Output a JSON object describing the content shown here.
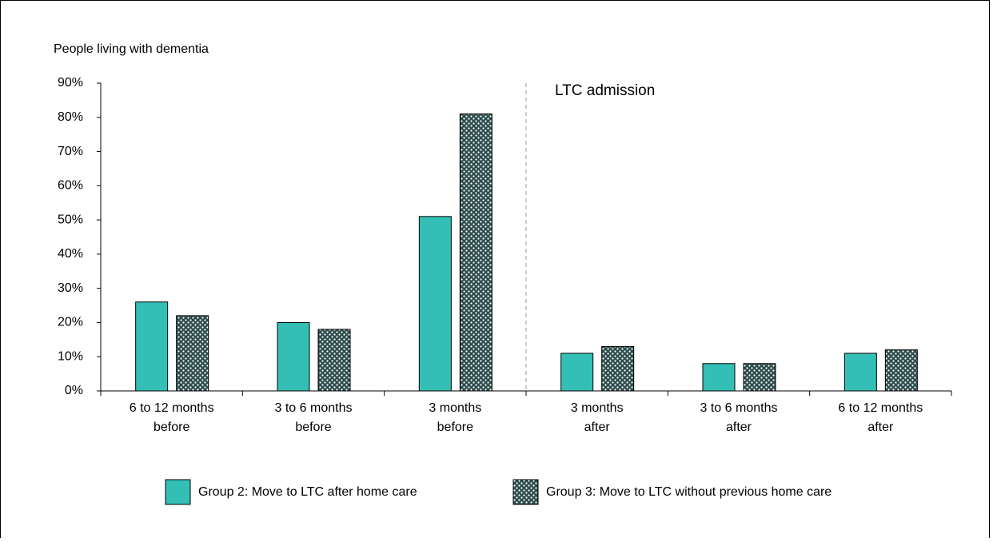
{
  "chart_data": {
    "type": "bar",
    "y_label": "People living with dementia",
    "annotation": "LTC admission",
    "categories": [
      [
        "6 to 12 months",
        "before"
      ],
      [
        "3 to 6 months",
        "before"
      ],
      [
        "3 months",
        "before"
      ],
      [
        "3 months",
        "after"
      ],
      [
        "3 to 6 months",
        "after"
      ],
      [
        "6 to 12 months",
        "after"
      ]
    ],
    "series": [
      {
        "name": "Group 2: Move to LTC after home care",
        "color": "#33bfb5",
        "values": [
          26,
          20,
          51,
          11,
          8,
          11
        ]
      },
      {
        "name": "Group 3: Move to LTC without previous home care",
        "color": "#2e4d4d",
        "pattern": "dots",
        "values": [
          22,
          18,
          81,
          13,
          8,
          12
        ]
      }
    ],
    "ylim": [
      0,
      90
    ],
    "yticks": [
      {
        "value": 0,
        "label": "0%"
      },
      {
        "value": 10,
        "label": "10%"
      },
      {
        "value": 20,
        "label": "20%"
      },
      {
        "value": 30,
        "label": "30%"
      },
      {
        "value": 40,
        "label": "40%"
      },
      {
        "value": 50,
        "label": "50%"
      },
      {
        "value": 60,
        "label": "60%"
      },
      {
        "value": 70,
        "label": "70%"
      },
      {
        "value": 80,
        "label": "80%"
      },
      {
        "value": 90,
        "label": "90%"
      }
    ],
    "grid": false,
    "legend": "bottom"
  }
}
